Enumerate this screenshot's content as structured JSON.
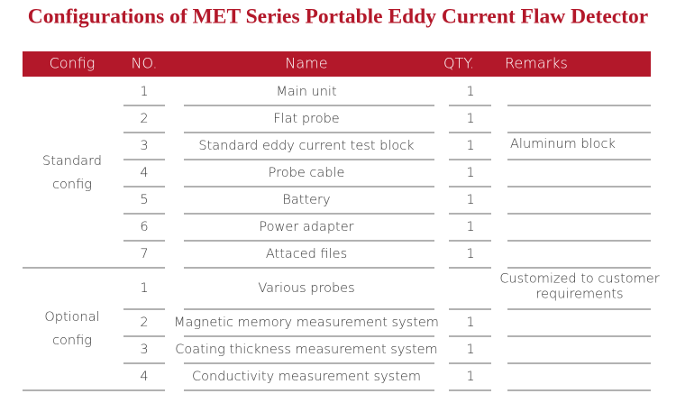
{
  "header": {
    "title": "Configurations of MET Series Portable Eddy Current Flaw Detector"
  },
  "table": {
    "columns": [
      "Config",
      "NO.",
      "Name",
      "QTY.",
      "Remarks"
    ],
    "groups": [
      {
        "label_lines": [
          "Standard",
          "config"
        ],
        "rows": [
          {
            "no": "1",
            "name": "Main unit",
            "qty": "1"
          },
          {
            "no": "2",
            "name": "Flat probe",
            "qty": "1"
          },
          {
            "no": "3",
            "name": "Standard eddy current test block",
            "qty": "1",
            "remarks_lines": [
              "Aluminum block"
            ]
          },
          {
            "no": "4",
            "name": "Probe cable",
            "qty": "1"
          },
          {
            "no": "5",
            "name": "Battery",
            "qty": "1"
          },
          {
            "no": "6",
            "name": "Power adapter",
            "qty": "1"
          },
          {
            "no": "7",
            "name": "Attaced files",
            "qty": "1"
          }
        ]
      },
      {
        "label_lines": [
          "Optional",
          "config"
        ],
        "rows": [
          {
            "no": "1",
            "name": "Various probes",
            "remarks_lines": [
              "Customized to customer",
              "requirements"
            ]
          },
          {
            "no": "2",
            "name": "Magnetic memory measurement system",
            "qty": "1"
          },
          {
            "no": "3",
            "name": "Coating thickness measurement system",
            "qty": "1"
          },
          {
            "no": "4",
            "name": "Conductivity measurement system",
            "qty": "1"
          }
        ]
      }
    ]
  }
}
